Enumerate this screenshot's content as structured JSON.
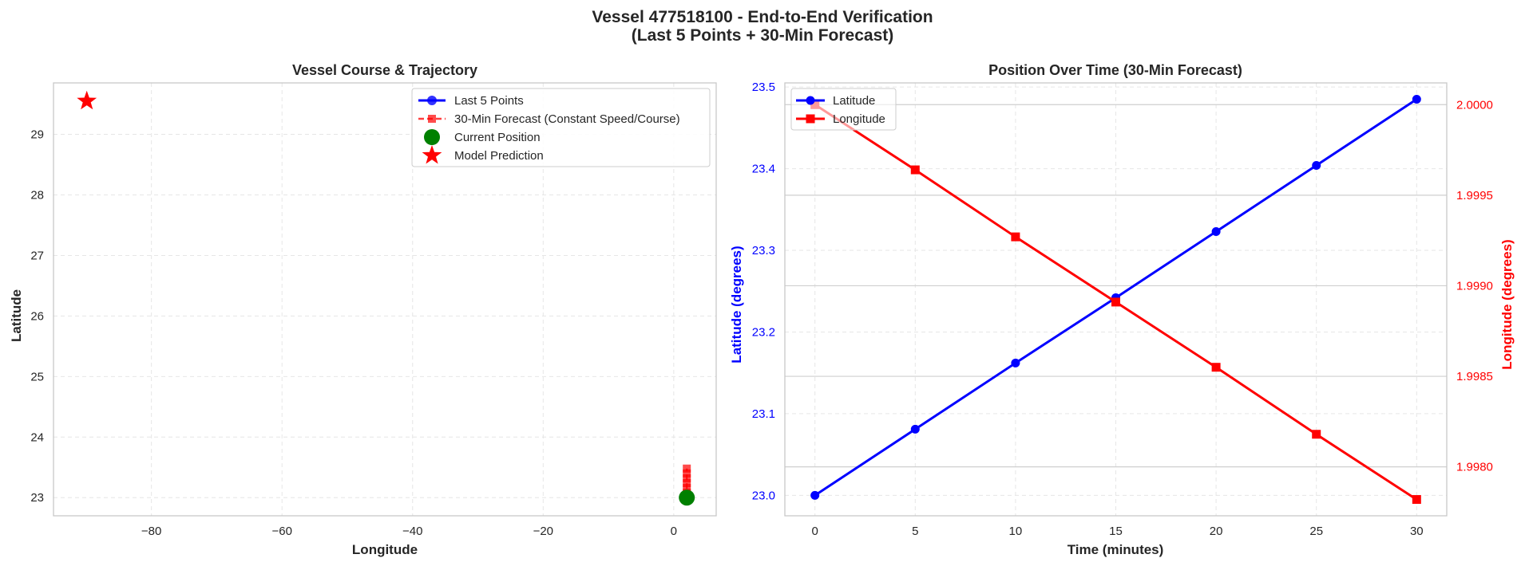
{
  "figure": {
    "title_line1": "Vessel 477518100 - End-to-End Verification",
    "title_line2": "(Last 5 Points + 30-Min Forecast)"
  },
  "colors": {
    "last_points": "#0000ff",
    "forecast": "#ff0000",
    "current": "#008000",
    "prediction": "#ff0000",
    "latitude_axis": "#0000ff",
    "longitude_axis": "#ff0000"
  },
  "chart_data": [
    {
      "type": "scatter",
      "title": "Vessel Course & Trajectory",
      "xlabel": "Longitude",
      "ylabel": "Latitude",
      "xlim": [
        -95,
        6.5
      ],
      "ylim": [
        22.7,
        29.85
      ],
      "xticks": [
        -80,
        -60,
        -40,
        -20,
        0
      ],
      "xtick_labels": [
        "−80",
        "−60",
        "−40",
        "−20",
        "0"
      ],
      "yticks": [
        23,
        24,
        25,
        26,
        27,
        28,
        29
      ],
      "grid": true,
      "legend_position": "top-right",
      "series": [
        {
          "name": "Last 5 Points",
          "marker": "circle",
          "x": [
            2.0,
            2.0,
            2.0,
            2.0,
            2.0
          ],
          "y": [
            23.0,
            23.0,
            23.0,
            23.0,
            23.0
          ]
        },
        {
          "name": "30-Min Forecast (Constant Speed/Course)",
          "marker": "square",
          "x": [
            2.0,
            1.9996,
            1.9993,
            1.9989,
            1.9985,
            1.9982,
            1.9978
          ],
          "y": [
            23.0,
            23.08,
            23.16,
            23.24,
            23.32,
            23.4,
            23.48
          ]
        },
        {
          "name": "Current Position",
          "marker": "circle",
          "x": [
            2.0
          ],
          "y": [
            23.0
          ]
        },
        {
          "name": "Model Prediction",
          "marker": "star",
          "x": [
            -89.9
          ],
          "y": [
            29.55
          ]
        }
      ]
    },
    {
      "type": "line",
      "title": "Position Over Time (30-Min Forecast)",
      "xlabel": "Time (minutes)",
      "ylabel": "Latitude (degrees)",
      "y2label": "Longitude (degrees)",
      "x": [
        0,
        5,
        10,
        15,
        20,
        25,
        30
      ],
      "xlim": [
        -1.5,
        31.5
      ],
      "ylim": [
        22.975,
        23.505
      ],
      "y2lim": [
        1.99773,
        2.00012
      ],
      "xticks": [
        0,
        5,
        10,
        15,
        20,
        25,
        30
      ],
      "yticks": [
        23.0,
        23.1,
        23.2,
        23.3,
        23.4,
        23.5
      ],
      "ytick_labels": [
        "23.0",
        "23.1",
        "23.2",
        "23.3",
        "23.4",
        "23.5"
      ],
      "y2ticks": [
        1.998,
        1.9985,
        1.999,
        1.9995,
        2.0
      ],
      "y2tick_labels": [
        "1.9980",
        "1.9985",
        "1.9990",
        "1.9995",
        "2.0000"
      ],
      "grid": true,
      "legend_position": "top-left",
      "series": [
        {
          "name": "Latitude",
          "axis": "left",
          "marker": "circle",
          "values": [
            23.0,
            23.081,
            23.162,
            23.242,
            23.323,
            23.404,
            23.485
          ]
        },
        {
          "name": "Longitude",
          "axis": "right",
          "marker": "square",
          "values": [
            2.0,
            1.99964,
            1.99927,
            1.99891,
            1.99855,
            1.99818,
            1.99782
          ]
        }
      ]
    }
  ]
}
